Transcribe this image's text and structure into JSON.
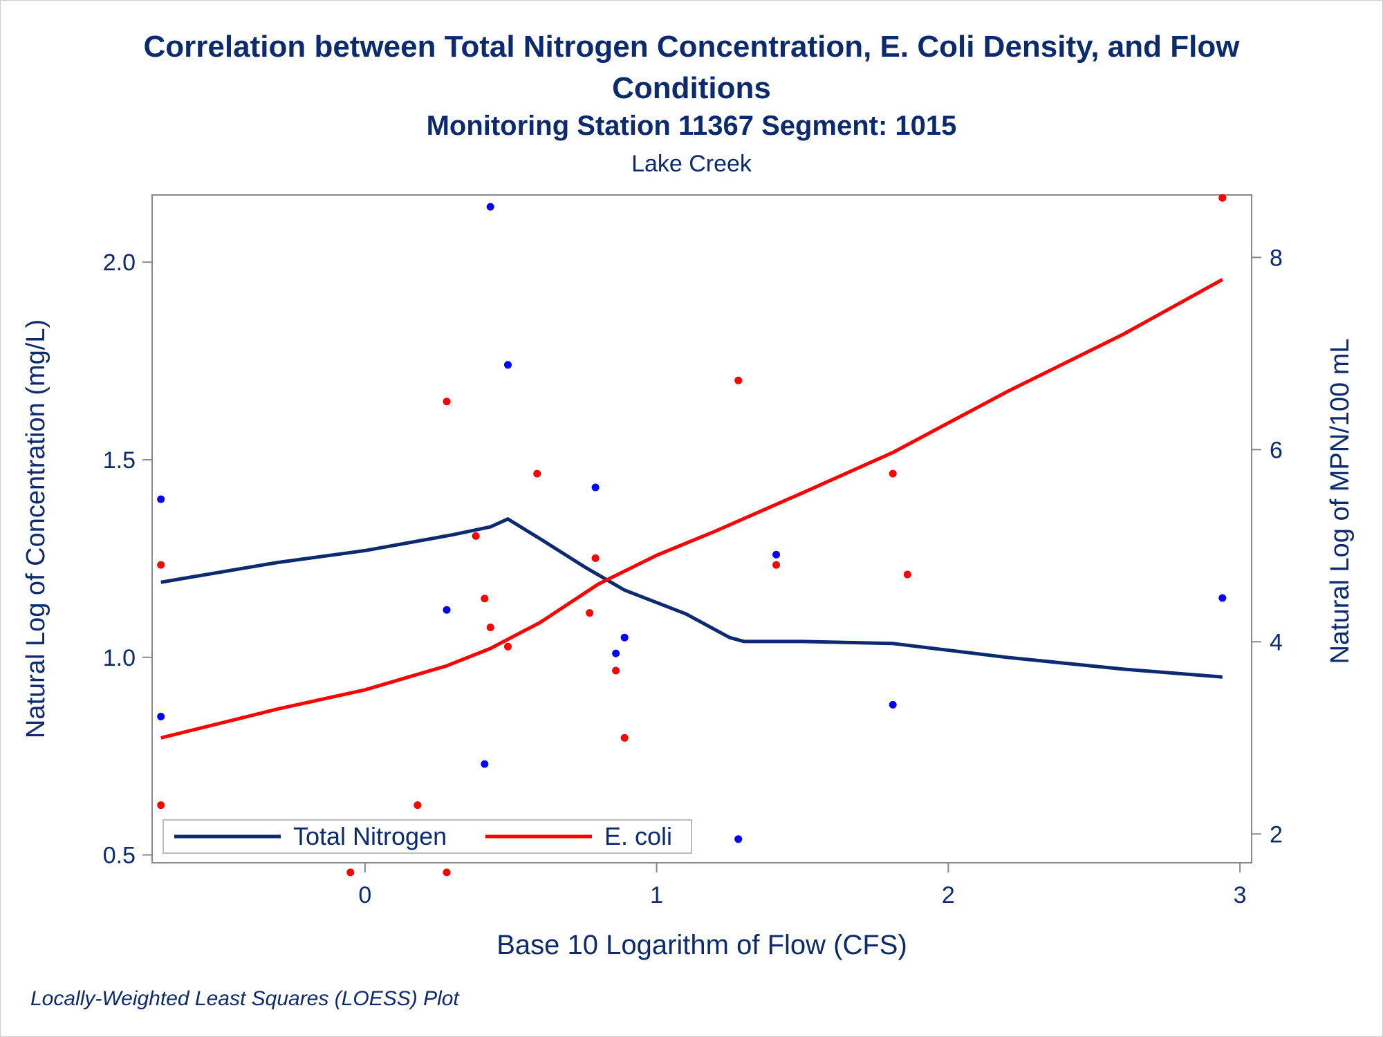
{
  "chart_data": {
    "type": "scatter",
    "title": "Correlation between Total Nitrogen Concentration, E. Coli Density, and Flow Conditions",
    "subtitle": "Monitoring Station 11367 Segment: 1015",
    "subtitle2": "Lake Creek",
    "footnote": "Locally-Weighted Least Squares (LOESS) Plot",
    "xlabel": "Base 10 Logarithm of Flow (CFS)",
    "ylabel_left": "Natural Log of Concentration (mg/L)",
    "ylabel_right": "Natural Log of MPN/100 mL",
    "xlim": [
      -0.73,
      3.04
    ],
    "ylim_left": [
      0.48,
      2.17
    ],
    "ylim_right": [
      1.7,
      8.65
    ],
    "x_ticks": [
      0,
      1,
      2,
      3
    ],
    "y_left_ticks": [
      0.5,
      1.0,
      1.5,
      2.0
    ],
    "y_right_ticks": [
      2,
      4,
      6,
      8
    ],
    "x_tick_labels": [
      "0",
      "1",
      "2",
      "3"
    ],
    "y_left_tick_labels": [
      "0.5",
      "1.0",
      "1.5",
      "2.0"
    ],
    "y_right_tick_labels": [
      "2",
      "4",
      "6",
      "8"
    ],
    "legend": {
      "placement": "bottom-left",
      "entries": [
        "Total Nitrogen",
        "E. coli"
      ]
    },
    "colors": {
      "nitrogen": "#0b2a6f",
      "ecoli": "#ff0000",
      "nitrogen_points": "#0000ff",
      "ecoli_points": "#ff0000",
      "text": "#0b2a6f",
      "axis": "#888888"
    },
    "series": [
      {
        "name": "Total Nitrogen",
        "axis": "left",
        "points": [
          [
            -0.7,
            1.4
          ],
          [
            -0.7,
            0.85
          ],
          [
            0.28,
            1.12
          ],
          [
            0.41,
            0.73
          ],
          [
            0.43,
            2.14
          ],
          [
            0.49,
            1.74
          ],
          [
            0.79,
            1.43
          ],
          [
            0.86,
            1.01
          ],
          [
            0.89,
            1.05
          ],
          [
            1.28,
            0.54
          ],
          [
            1.41,
            1.26
          ],
          [
            1.81,
            0.88
          ],
          [
            2.94,
            1.15
          ]
        ],
        "loess": [
          [
            -0.7,
            1.19
          ],
          [
            -0.3,
            1.24
          ],
          [
            0.0,
            1.27
          ],
          [
            0.3,
            1.31
          ],
          [
            0.43,
            1.33
          ],
          [
            0.49,
            1.35
          ],
          [
            0.6,
            1.3
          ],
          [
            0.75,
            1.23
          ],
          [
            0.89,
            1.17
          ],
          [
            1.1,
            1.11
          ],
          [
            1.25,
            1.05
          ],
          [
            1.3,
            1.04
          ],
          [
            1.5,
            1.04
          ],
          [
            1.81,
            1.035
          ],
          [
            2.2,
            1.0
          ],
          [
            2.6,
            0.97
          ],
          [
            2.94,
            0.95
          ]
        ]
      },
      {
        "name": "E. coli",
        "axis": "right",
        "points": [
          [
            -0.7,
            4.8
          ],
          [
            -0.7,
            2.3
          ],
          [
            -0.05,
            1.6
          ],
          [
            0.18,
            2.3
          ],
          [
            0.28,
            1.6
          ],
          [
            0.28,
            6.5
          ],
          [
            0.38,
            5.1
          ],
          [
            0.41,
            4.45
          ],
          [
            0.43,
            4.15
          ],
          [
            0.49,
            3.95
          ],
          [
            0.59,
            5.75
          ],
          [
            0.77,
            4.3
          ],
          [
            0.79,
            4.87
          ],
          [
            0.86,
            3.7
          ],
          [
            0.89,
            3.0
          ],
          [
            1.28,
            6.72
          ],
          [
            1.41,
            4.8
          ],
          [
            1.81,
            5.75
          ],
          [
            1.86,
            4.7
          ],
          [
            2.94,
            8.62
          ]
        ],
        "loess": [
          [
            -0.7,
            3.0
          ],
          [
            -0.3,
            3.3
          ],
          [
            0.0,
            3.5
          ],
          [
            0.28,
            3.75
          ],
          [
            0.43,
            3.93
          ],
          [
            0.6,
            4.2
          ],
          [
            0.8,
            4.6
          ],
          [
            1.0,
            4.9
          ],
          [
            1.2,
            5.15
          ],
          [
            1.5,
            5.55
          ],
          [
            1.81,
            5.97
          ],
          [
            2.2,
            6.6
          ],
          [
            2.6,
            7.2
          ],
          [
            2.94,
            7.77
          ]
        ]
      }
    ]
  }
}
